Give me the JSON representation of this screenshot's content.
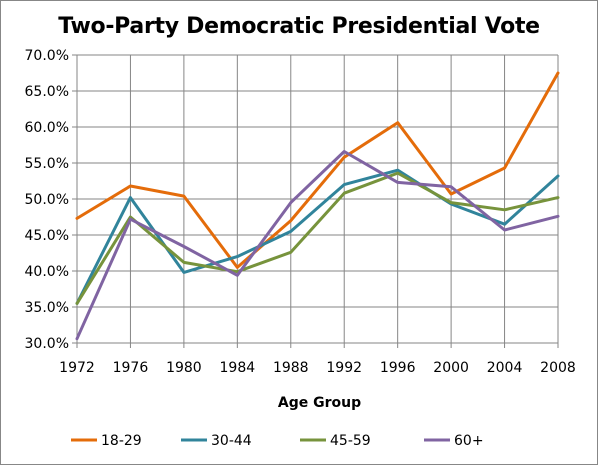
{
  "chart_data": {
    "type": "line",
    "title": "Two-Party Democratic Presidential Vote",
    "xlabel": "Age Group",
    "ylabel": "",
    "x": [
      "1972",
      "1976",
      "1980",
      "1984",
      "1988",
      "1992",
      "1996",
      "2000",
      "2004",
      "2008"
    ],
    "y_ticks": [
      "30.0%",
      "35.0%",
      "40.0%",
      "45.0%",
      "50.0%",
      "55.0%",
      "60.0%",
      "65.0%",
      "70.0%"
    ],
    "ylim": [
      30,
      70
    ],
    "grid": true,
    "legend_position": "bottom",
    "series": [
      {
        "name": "18-29",
        "color": "#E46C0A",
        "values": [
          47.3,
          51.8,
          50.4,
          40.5,
          47.0,
          55.8,
          60.6,
          50.7,
          54.3,
          67.5
        ]
      },
      {
        "name": "30-44",
        "color": "#31849B",
        "values": [
          35.5,
          50.2,
          39.8,
          42.0,
          45.5,
          52.0,
          54.0,
          49.3,
          46.5,
          53.2
        ]
      },
      {
        "name": "45-59",
        "color": "#77933C",
        "values": [
          35.5,
          47.5,
          41.2,
          39.9,
          42.6,
          50.8,
          53.6,
          49.5,
          48.5,
          50.2
        ]
      },
      {
        "name": "60+",
        "color": "#8064A2",
        "values": [
          30.6,
          47.2,
          43.4,
          39.4,
          49.5,
          56.6,
          52.3,
          51.7,
          45.7,
          47.6
        ]
      }
    ]
  }
}
